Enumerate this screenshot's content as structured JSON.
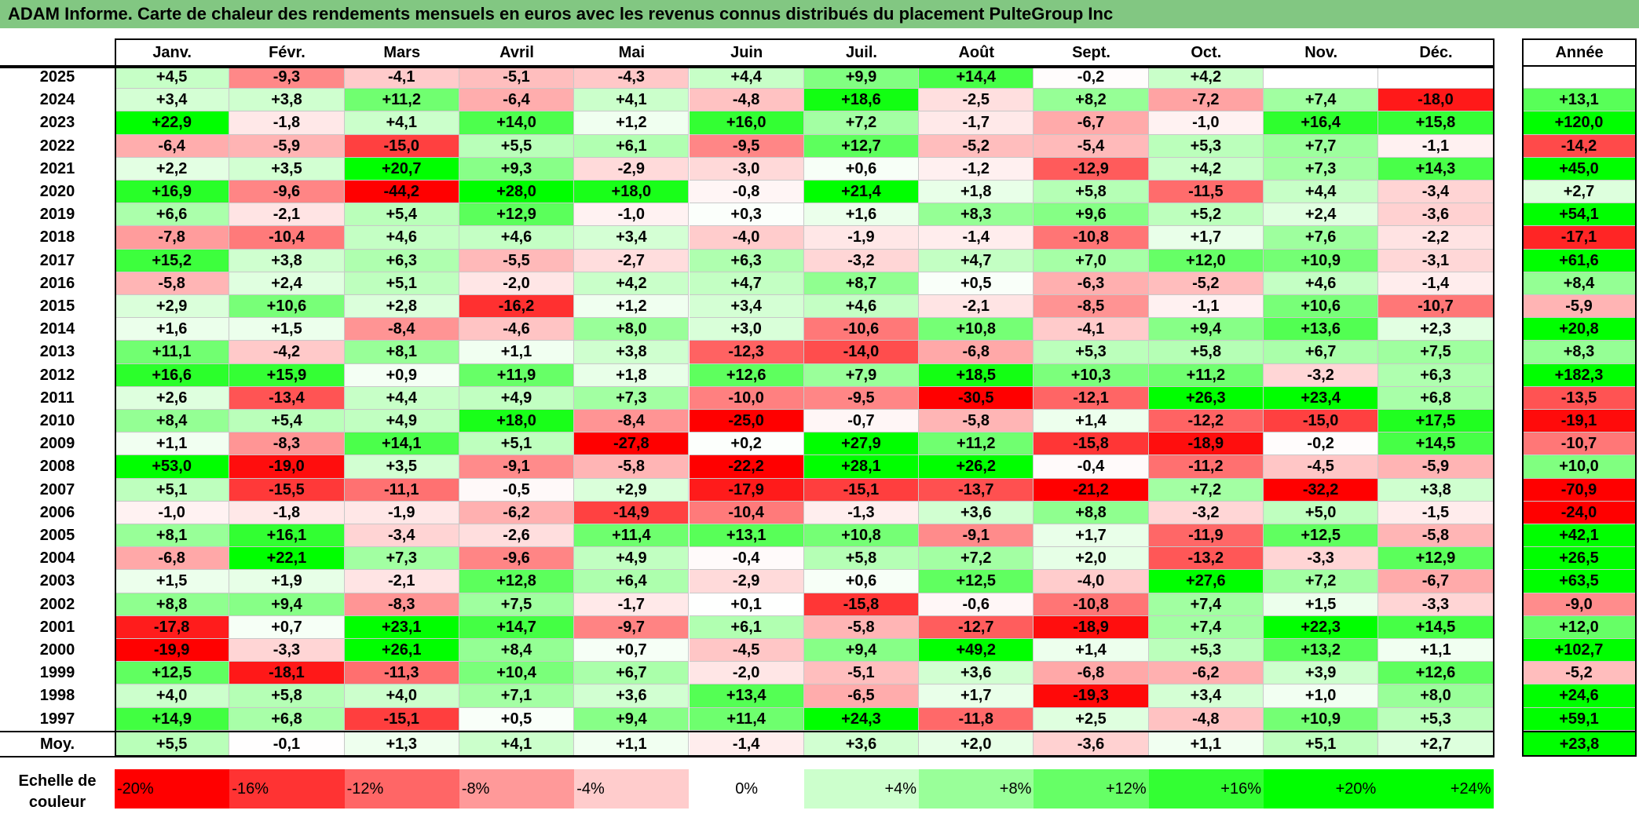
{
  "title": "ADAM Informe. Carte de chaleur des rendements mensuels en euros avec les revenus connus distribués du placement PulteGroup Inc",
  "chart_data": {
    "type": "heatmap",
    "title": "ADAM Informe. Carte de chaleur des rendements mensuels en euros avec les revenus connus distribués du placement PulteGroup Inc",
    "months": [
      "Janv.",
      "Févr.",
      "Mars",
      "Avril",
      "Mai",
      "Juin",
      "Juil.",
      "Août",
      "Sept.",
      "Oct.",
      "Nov.",
      "Déc."
    ],
    "year_header": "Année",
    "rows": [
      {
        "year": "2025",
        "values": [
          "+4,5",
          "-9,3",
          "-4,1",
          "-5,1",
          "-4,3",
          "+4,4",
          "+9,9",
          "+14,4",
          "-0,2",
          "+4,2",
          "",
          ""
        ],
        "annual": ""
      },
      {
        "year": "2024",
        "values": [
          "+3,4",
          "+3,8",
          "+11,2",
          "-6,4",
          "+4,1",
          "-4,8",
          "+18,6",
          "-2,5",
          "+8,2",
          "-7,2",
          "+7,4",
          "-18,0"
        ],
        "annual": "+13,1"
      },
      {
        "year": "2023",
        "values": [
          "+22,9",
          "-1,8",
          "+4,1",
          "+14,0",
          "+1,2",
          "+16,0",
          "+7,2",
          "-1,7",
          "-6,7",
          "-1,0",
          "+16,4",
          "+15,8"
        ],
        "annual": "+120,0"
      },
      {
        "year": "2022",
        "values": [
          "-6,4",
          "-5,9",
          "-15,0",
          "+5,5",
          "+6,1",
          "-9,5",
          "+12,7",
          "-5,2",
          "-5,4",
          "+5,3",
          "+7,7",
          "-1,1"
        ],
        "annual": "-14,2"
      },
      {
        "year": "2021",
        "values": [
          "+2,2",
          "+3,5",
          "+20,7",
          "+9,3",
          "-2,9",
          "-3,0",
          "+0,6",
          "-1,2",
          "-12,9",
          "+4,2",
          "+7,3",
          "+14,3"
        ],
        "annual": "+45,0"
      },
      {
        "year": "2020",
        "values": [
          "+16,9",
          "-9,6",
          "-44,2",
          "+28,0",
          "+18,0",
          "-0,8",
          "+21,4",
          "+1,8",
          "+5,8",
          "-11,5",
          "+4,4",
          "-3,4"
        ],
        "annual": "+2,7"
      },
      {
        "year": "2019",
        "values": [
          "+6,6",
          "-2,1",
          "+5,4",
          "+12,9",
          "-1,0",
          "+0,3",
          "+1,6",
          "+8,3",
          "+9,6",
          "+5,2",
          "+2,4",
          "-3,6"
        ],
        "annual": "+54,1"
      },
      {
        "year": "2018",
        "values": [
          "-7,8",
          "-10,4",
          "+4,6",
          "+4,6",
          "+3,4",
          "-4,0",
          "-1,9",
          "-1,4",
          "-10,8",
          "+1,7",
          "+7,6",
          "-2,2"
        ],
        "annual": "-17,1"
      },
      {
        "year": "2017",
        "values": [
          "+15,2",
          "+3,8",
          "+6,3",
          "-5,5",
          "-2,7",
          "+6,3",
          "-3,2",
          "+4,7",
          "+7,0",
          "+12,0",
          "+10,9",
          "-3,1"
        ],
        "annual": "+61,6"
      },
      {
        "year": "2016",
        "values": [
          "-5,8",
          "+2,4",
          "+5,1",
          "-2,0",
          "+4,2",
          "+4,7",
          "+8,7",
          "+0,5",
          "-6,3",
          "-5,2",
          "+4,6",
          "-1,4"
        ],
        "annual": "+8,4"
      },
      {
        "year": "2015",
        "values": [
          "+2,9",
          "+10,6",
          "+2,8",
          "-16,2",
          "+1,2",
          "+3,4",
          "+4,6",
          "-2,1",
          "-8,5",
          "-1,1",
          "+10,6",
          "-10,7"
        ],
        "annual": "-5,9"
      },
      {
        "year": "2014",
        "values": [
          "+1,6",
          "+1,5",
          "-8,4",
          "-4,6",
          "+8,0",
          "+3,0",
          "-10,6",
          "+10,8",
          "-4,1",
          "+9,4",
          "+13,6",
          "+2,3"
        ],
        "annual": "+20,8"
      },
      {
        "year": "2013",
        "values": [
          "+11,1",
          "-4,2",
          "+8,1",
          "+1,1",
          "+3,8",
          "-12,3",
          "-14,0",
          "-6,8",
          "+5,3",
          "+5,8",
          "+6,7",
          "+7,5"
        ],
        "annual": "+8,3"
      },
      {
        "year": "2012",
        "values": [
          "+16,6",
          "+15,9",
          "+0,9",
          "+11,9",
          "+1,8",
          "+12,6",
          "+7,9",
          "+18,5",
          "+10,3",
          "+11,2",
          "-3,2",
          "+6,3"
        ],
        "annual": "+182,3"
      },
      {
        "year": "2011",
        "values": [
          "+2,6",
          "-13,4",
          "+4,4",
          "+4,9",
          "+7,3",
          "-10,0",
          "-9,5",
          "-30,5",
          "-12,1",
          "+26,3",
          "+23,4",
          "+6,8"
        ],
        "annual": "-13,5"
      },
      {
        "year": "2010",
        "values": [
          "+8,4",
          "+5,4",
          "+4,9",
          "+18,0",
          "-8,4",
          "-25,0",
          "-0,7",
          "-5,8",
          "+1,4",
          "-12,2",
          "-15,0",
          "+17,5"
        ],
        "annual": "-19,1"
      },
      {
        "year": "2009",
        "values": [
          "+1,1",
          "-8,3",
          "+14,1",
          "+5,1",
          "-27,8",
          "+0,2",
          "+27,9",
          "+11,2",
          "-15,8",
          "-18,9",
          "-0,2",
          "+14,5"
        ],
        "annual": "-10,7"
      },
      {
        "year": "2008",
        "values": [
          "+53,0",
          "-19,0",
          "+3,5",
          "-9,1",
          "-5,8",
          "-22,2",
          "+28,1",
          "+26,2",
          "-0,4",
          "-11,2",
          "-4,5",
          "-5,9"
        ],
        "annual": "+10,0"
      },
      {
        "year": "2007",
        "values": [
          "+5,1",
          "-15,5",
          "-11,1",
          "-0,5",
          "+2,9",
          "-17,9",
          "-15,1",
          "-13,7",
          "-21,2",
          "+7,2",
          "-32,2",
          "+3,8"
        ],
        "annual": "-70,9"
      },
      {
        "year": "2006",
        "values": [
          "-1,0",
          "-1,8",
          "-1,9",
          "-6,2",
          "-14,9",
          "-10,4",
          "-1,3",
          "+3,6",
          "+8,8",
          "-3,2",
          "+5,0",
          "-1,5"
        ],
        "annual": "-24,0"
      },
      {
        "year": "2005",
        "values": [
          "+8,1",
          "+16,1",
          "-3,4",
          "-2,6",
          "+11,4",
          "+13,1",
          "+10,8",
          "-9,1",
          "+1,7",
          "-11,9",
          "+12,5",
          "-5,8"
        ],
        "annual": "+42,1"
      },
      {
        "year": "2004",
        "values": [
          "-6,8",
          "+22,1",
          "+7,3",
          "-9,6",
          "+4,9",
          "-0,4",
          "+5,8",
          "+7,2",
          "+2,0",
          "-13,2",
          "-3,3",
          "+12,9"
        ],
        "annual": "+26,5"
      },
      {
        "year": "2003",
        "values": [
          "+1,5",
          "+1,9",
          "-2,1",
          "+12,8",
          "+6,4",
          "-2,9",
          "+0,6",
          "+12,5",
          "-4,0",
          "+27,6",
          "+7,2",
          "-6,7"
        ],
        "annual": "+63,5"
      },
      {
        "year": "2002",
        "values": [
          "+8,8",
          "+9,4",
          "-8,3",
          "+7,5",
          "-1,7",
          "+0,1",
          "-15,8",
          "-0,6",
          "-10,8",
          "+7,4",
          "+1,5",
          "-3,3"
        ],
        "annual": "-9,0"
      },
      {
        "year": "2001",
        "values": [
          "-17,8",
          "+0,7",
          "+23,1",
          "+14,7",
          "-9,7",
          "+6,1",
          "-5,8",
          "-12,7",
          "-18,9",
          "+7,4",
          "+22,3",
          "+14,5"
        ],
        "annual": "+12,0"
      },
      {
        "year": "2000",
        "values": [
          "-19,9",
          "-3,3",
          "+26,1",
          "+8,4",
          "+0,7",
          "-4,5",
          "+9,4",
          "+49,2",
          "+1,4",
          "+5,3",
          "+13,2",
          "+1,1"
        ],
        "annual": "+102,7"
      },
      {
        "year": "1999",
        "values": [
          "+12,5",
          "-18,1",
          "-11,3",
          "+10,4",
          "+6,7",
          "-2,0",
          "-5,1",
          "+3,6",
          "-6,8",
          "-6,2",
          "+3,9",
          "+12,6"
        ],
        "annual": "-5,2"
      },
      {
        "year": "1998",
        "values": [
          "+4,0",
          "+5,8",
          "+4,0",
          "+7,1",
          "+3,6",
          "+13,4",
          "-6,5",
          "+1,7",
          "-19,3",
          "+3,4",
          "+1,0",
          "+8,0"
        ],
        "annual": "+24,6"
      },
      {
        "year": "1997",
        "values": [
          "+14,9",
          "+6,8",
          "-15,1",
          "+0,5",
          "+9,4",
          "+11,4",
          "+24,3",
          "-11,8",
          "+2,5",
          "-4,8",
          "+10,9",
          "+5,3"
        ],
        "annual": "+59,1"
      }
    ],
    "average": {
      "label": "Moy.",
      "values": [
        "+5,5",
        "-0,1",
        "+1,3",
        "+4,1",
        "+1,1",
        "-1,4",
        "+3,6",
        "+2,0",
        "-3,6",
        "+1,1",
        "+5,1",
        "+2,7"
      ],
      "annual": "+23,8"
    },
    "color_scale": {
      "title": "Echelle de couleur",
      "stops": [
        {
          "label": "-20%",
          "value": -20,
          "color": "#ff0000"
        },
        {
          "label": "-16%",
          "value": -16,
          "color": "#ff3333"
        },
        {
          "label": "-12%",
          "value": -12,
          "color": "#ff6666"
        },
        {
          "label": "-8%",
          "value": -8,
          "color": "#ff9999"
        },
        {
          "label": "-4%",
          "value": -4,
          "color": "#ffcccc"
        },
        {
          "label": "0%",
          "value": 0,
          "color": "#ffffff"
        },
        {
          "label": "+4%",
          "value": 4,
          "color": "#ccffcc"
        },
        {
          "label": "+8%",
          "value": 8,
          "color": "#99ff99"
        },
        {
          "label": "+12%",
          "value": 12,
          "color": "#66ff66"
        },
        {
          "label": "+16%",
          "value": 16,
          "color": "#33ff33"
        },
        {
          "label": "+20%",
          "value": 20,
          "color": "#00ff00"
        },
        {
          "label": "+24%",
          "value": 24,
          "color": "#00ff00"
        }
      ]
    }
  },
  "colors": {
    "title_bar": "#82c782",
    "frame": "#000000",
    "gridline": "#c8c8c8"
  }
}
